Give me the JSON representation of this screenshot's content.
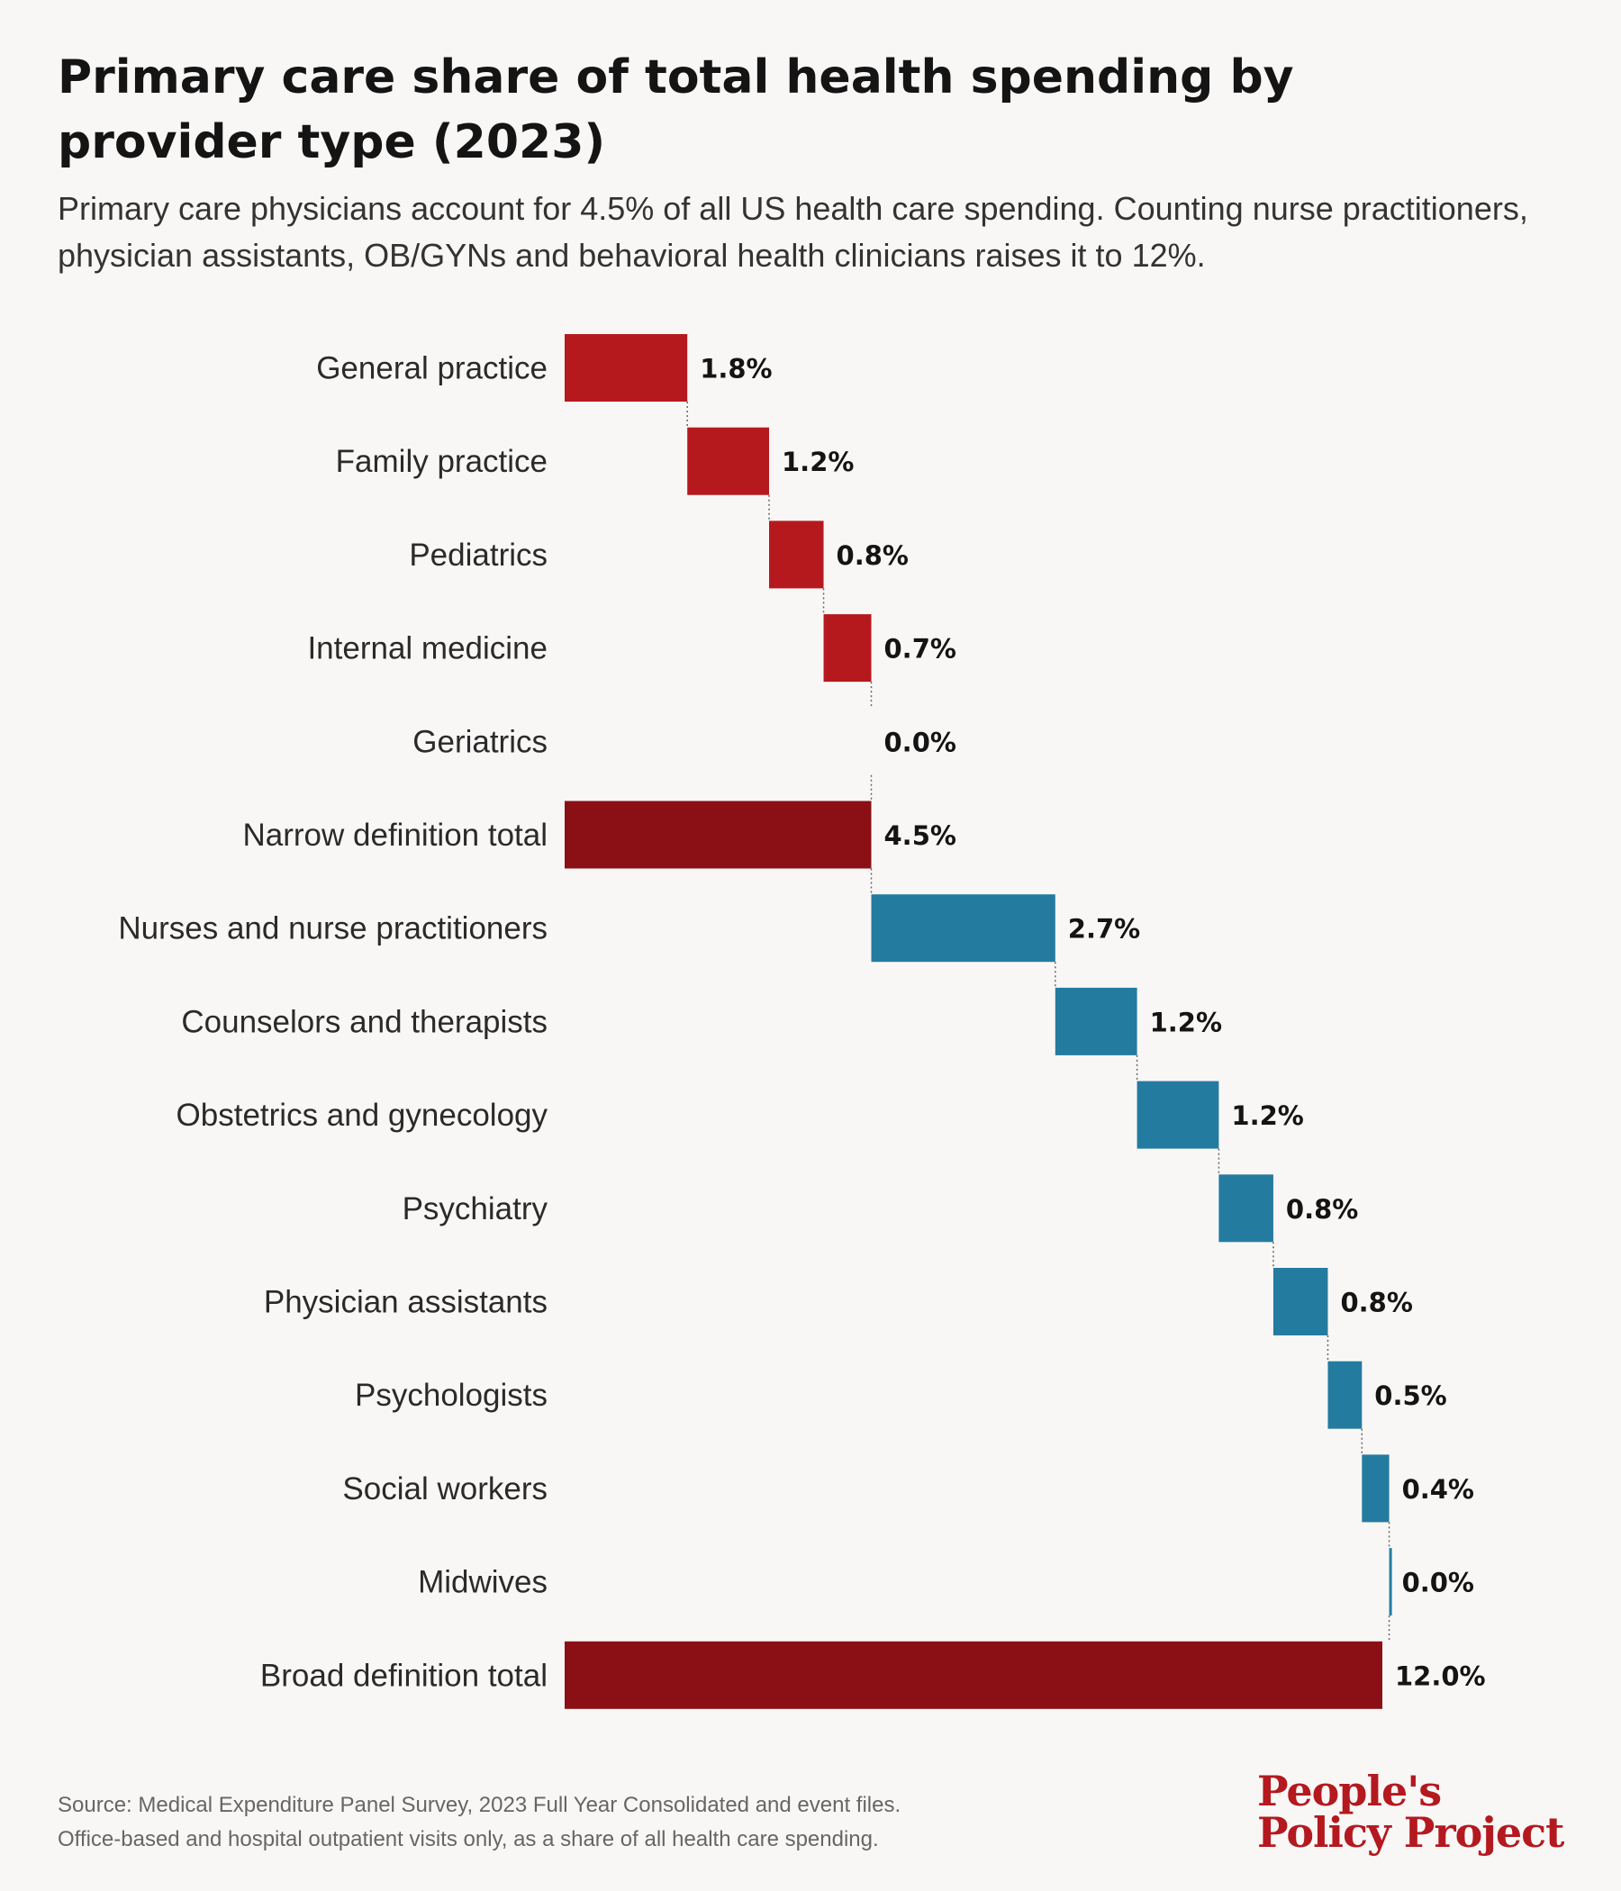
{
  "header": {
    "title": "Primary care share of total health spending by provider type (2023)",
    "subtitle": "Primary care physicians account for 4.5% of all US health care spending. Counting nurse practitioners, physician assistants, OB/GYNs and behavioral health clinicians raises it to 12%."
  },
  "colors": {
    "primary_care": "#b5191e",
    "total": "#8a1015",
    "other_clinicians": "#247ba0",
    "connector": "#666666"
  },
  "chart_data": {
    "type": "waterfall",
    "unit": "%",
    "categories": [
      "General practice",
      "Family practice",
      "Pediatrics",
      "Internal medicine",
      "Geriatrics",
      "Narrow definition total",
      "Nurses and nurse practitioners",
      "Counselors and therapists",
      "Obstetrics and gynecology",
      "Psychiatry",
      "Physician assistants",
      "Psychologists",
      "Social workers",
      "Midwives",
      "Broad definition total"
    ],
    "values": [
      1.8,
      1.2,
      0.8,
      0.7,
      0.0,
      4.5,
      2.7,
      1.2,
      1.2,
      0.8,
      0.8,
      0.5,
      0.4,
      0.0,
      12.0
    ],
    "value_labels": [
      "1.8%",
      "1.2%",
      "0.8%",
      "0.7%",
      "0.0%",
      "4.5%",
      "2.7%",
      "1.2%",
      "1.2%",
      "0.8%",
      "0.8%",
      "0.5%",
      "0.4%",
      "0.0%",
      "12.0%"
    ],
    "kinds": [
      "primary_care",
      "primary_care",
      "primary_care",
      "primary_care",
      "primary_care",
      "total",
      "other_clinicians",
      "other_clinicians",
      "other_clinicians",
      "other_clinicians",
      "other_clinicians",
      "other_clinicians",
      "other_clinicians",
      "other_clinicians",
      "total"
    ],
    "xlim": [
      0,
      12.0
    ],
    "grid": false
  },
  "footer": {
    "source_line1": "Source: Medical Expenditure Panel Survey, 2023 Full Year Consolidated and event files.",
    "source_line2": "Office-based and hospital outpatient visits only, as a share of all health care spending."
  },
  "logo": {
    "line1": "People's",
    "line2": "Policy Project"
  }
}
